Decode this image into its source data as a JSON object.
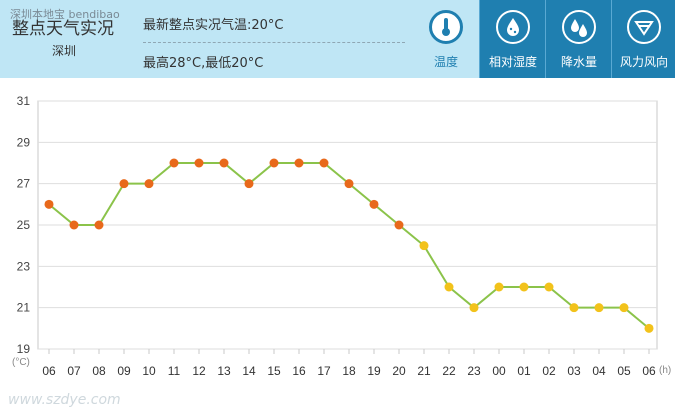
{
  "header": {
    "title": "整点天气实况",
    "overlay_text": "深圳本地宝 bendibao",
    "city": "深圳",
    "latest": "最新整点实况气温:20°C",
    "hilo": "最高28°C,最低20°C",
    "tabs": [
      {
        "label": "温度",
        "icon": "thermometer-icon",
        "active": true
      },
      {
        "label": "相对湿度",
        "icon": "humidity-drop-icon",
        "active": false
      },
      {
        "label": "降水量",
        "icon": "rain-drops-icon",
        "active": false
      },
      {
        "label": "风力风向",
        "icon": "wind-icon",
        "active": false
      }
    ]
  },
  "watermark": "www.szdye.com",
  "chart_data": {
    "type": "line",
    "x": [
      "06",
      "07",
      "08",
      "09",
      "10",
      "11",
      "12",
      "13",
      "14",
      "15",
      "16",
      "17",
      "18",
      "19",
      "20",
      "21",
      "22",
      "23",
      "00",
      "01",
      "02",
      "03",
      "04",
      "05",
      "06"
    ],
    "values": [
      26,
      25,
      25,
      27,
      27,
      28,
      28,
      28,
      27,
      28,
      28,
      28,
      27,
      26,
      25,
      24,
      22,
      21,
      22,
      22,
      22,
      21,
      21,
      21,
      20
    ],
    "yticks": [
      19,
      21,
      23,
      25,
      27,
      29,
      31
    ],
    "ylim": [
      19,
      31
    ],
    "ylabel": "(°C)",
    "xlabel": "(h)",
    "grid": true,
    "line_color": "#8bc34a",
    "marker_color_warm": "#e8691b",
    "marker_color_cool": "#f2c21b"
  }
}
